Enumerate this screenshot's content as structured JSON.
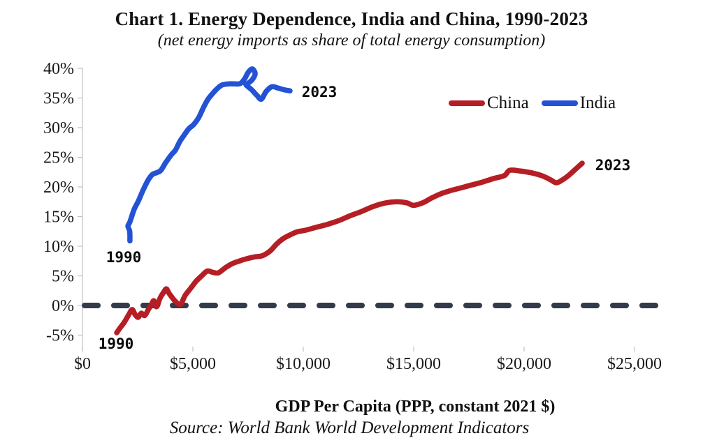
{
  "title": "Chart 1. Energy Dependence, India and China, 1990-2023",
  "subtitle": "(net energy imports as share of total energy consumption)",
  "x_axis_title": "GDP Per Capita (PPP, constant 2021 $)",
  "source": "Source: World Bank World Development Indicators",
  "annotations": {
    "china_start": "1990",
    "china_end": "2023",
    "india_start": "1990",
    "india_end": "2023"
  },
  "colors": {
    "china": "#b51e24",
    "india": "#2353d4",
    "zero_line": "#333a49",
    "axis": "#c0c0c0",
    "text": "#111111"
  },
  "chart_data": {
    "type": "line",
    "title": "Chart 1. Energy Dependence, India and China, 1990-2023",
    "xlabel": "GDP Per Capita (PPP, constant 2021 $)",
    "ylabel": "net energy imports as share of total energy consumption (%)",
    "xlim": [
      0,
      25000
    ],
    "ylim": [
      -5,
      40
    ],
    "grid": false,
    "legend_position": "top-right",
    "zero_line_dashed": true,
    "x_tick_values": [
      0,
      5000,
      10000,
      15000,
      20000,
      25000
    ],
    "x_tick_labels": [
      "$0",
      "$5,000",
      "$10,000",
      "$15,000",
      "$20,000",
      "$25,000"
    ],
    "y_tick_values": [
      40,
      35,
      30,
      25,
      20,
      15,
      10,
      5,
      0,
      -5
    ],
    "y_tick_labels": [
      "40%",
      "35%",
      "30%",
      "25%",
      "20%",
      "15%",
      "10%",
      "5%",
      "0%",
      "-5%"
    ],
    "series": [
      {
        "name": "China",
        "color": "#b51e24",
        "start_year": 1990,
        "end_year": 2023,
        "points": [
          [
            1550,
            -4.6
          ],
          [
            1700,
            -3.8
          ],
          [
            1900,
            -2.8
          ],
          [
            2090,
            -1.6
          ],
          [
            2250,
            -0.7
          ],
          [
            2380,
            -1.5
          ],
          [
            2520,
            -2.0
          ],
          [
            2660,
            -1.3
          ],
          [
            2820,
            -1.7
          ],
          [
            2980,
            -0.7
          ],
          [
            3100,
            0.0
          ],
          [
            3230,
            0.8
          ],
          [
            3360,
            -0.2
          ],
          [
            3510,
            1.2
          ],
          [
            3670,
            2.2
          ],
          [
            3800,
            2.8
          ],
          [
            3930,
            2.0
          ],
          [
            4180,
            0.8
          ],
          [
            4430,
            0.2
          ],
          [
            4650,
            1.7
          ],
          [
            4900,
            2.9
          ],
          [
            5150,
            4.1
          ],
          [
            5400,
            5.0
          ],
          [
            5650,
            5.8
          ],
          [
            5900,
            5.6
          ],
          [
            6150,
            5.5
          ],
          [
            6450,
            6.3
          ],
          [
            6750,
            7.0
          ],
          [
            7100,
            7.5
          ],
          [
            7450,
            7.9
          ],
          [
            7800,
            8.2
          ],
          [
            8150,
            8.4
          ],
          [
            8500,
            9.2
          ],
          [
            8800,
            10.4
          ],
          [
            9100,
            11.3
          ],
          [
            9400,
            11.9
          ],
          [
            9700,
            12.4
          ],
          [
            10100,
            12.7
          ],
          [
            10600,
            13.2
          ],
          [
            11100,
            13.7
          ],
          [
            11600,
            14.3
          ],
          [
            12100,
            15.1
          ],
          [
            12600,
            15.8
          ],
          [
            13100,
            16.6
          ],
          [
            13500,
            17.1
          ],
          [
            13900,
            17.4
          ],
          [
            14300,
            17.5
          ],
          [
            14700,
            17.3
          ],
          [
            15000,
            16.9
          ],
          [
            15400,
            17.3
          ],
          [
            15800,
            18.1
          ],
          [
            16200,
            18.8
          ],
          [
            16600,
            19.3
          ],
          [
            17100,
            19.8
          ],
          [
            17600,
            20.3
          ],
          [
            18100,
            20.8
          ],
          [
            18600,
            21.4
          ],
          [
            19100,
            21.9
          ],
          [
            19350,
            22.8
          ],
          [
            19800,
            22.7
          ],
          [
            20300,
            22.4
          ],
          [
            20800,
            21.9
          ],
          [
            21200,
            21.2
          ],
          [
            21450,
            20.7
          ],
          [
            21700,
            21.1
          ],
          [
            22000,
            21.9
          ],
          [
            22300,
            22.9
          ],
          [
            22630,
            24.0
          ]
        ]
      },
      {
        "name": "India",
        "color": "#2353d4",
        "start_year": 1990,
        "end_year": 2023,
        "points": [
          [
            2150,
            10.9
          ],
          [
            2140,
            12.5
          ],
          [
            2060,
            13.4
          ],
          [
            2150,
            14.1
          ],
          [
            2340,
            16.2
          ],
          [
            2530,
            17.6
          ],
          [
            2750,
            19.5
          ],
          [
            2980,
            21.2
          ],
          [
            3170,
            22.1
          ],
          [
            3360,
            22.4
          ],
          [
            3550,
            22.8
          ],
          [
            3770,
            24.1
          ],
          [
            4020,
            25.4
          ],
          [
            4210,
            26.2
          ],
          [
            4400,
            27.6
          ],
          [
            4560,
            28.5
          ],
          [
            4810,
            29.8
          ],
          [
            5030,
            30.5
          ],
          [
            5250,
            31.6
          ],
          [
            5480,
            33.4
          ],
          [
            5670,
            34.7
          ],
          [
            5860,
            35.6
          ],
          [
            6080,
            36.5
          ],
          [
            6330,
            37.2
          ],
          [
            6710,
            37.4
          ],
          [
            7120,
            37.4
          ],
          [
            7340,
            38.2
          ],
          [
            7500,
            39.3
          ],
          [
            7690,
            39.9
          ],
          [
            7820,
            39.1
          ],
          [
            7690,
            38.1
          ],
          [
            7470,
            37.4
          ],
          [
            7410,
            37.2
          ],
          [
            7660,
            36.4
          ],
          [
            7910,
            35.4
          ],
          [
            8100,
            34.8
          ],
          [
            8320,
            36.1
          ],
          [
            8580,
            36.9
          ],
          [
            8830,
            36.7
          ],
          [
            9120,
            36.4
          ],
          [
            9400,
            36.2
          ]
        ]
      }
    ]
  }
}
